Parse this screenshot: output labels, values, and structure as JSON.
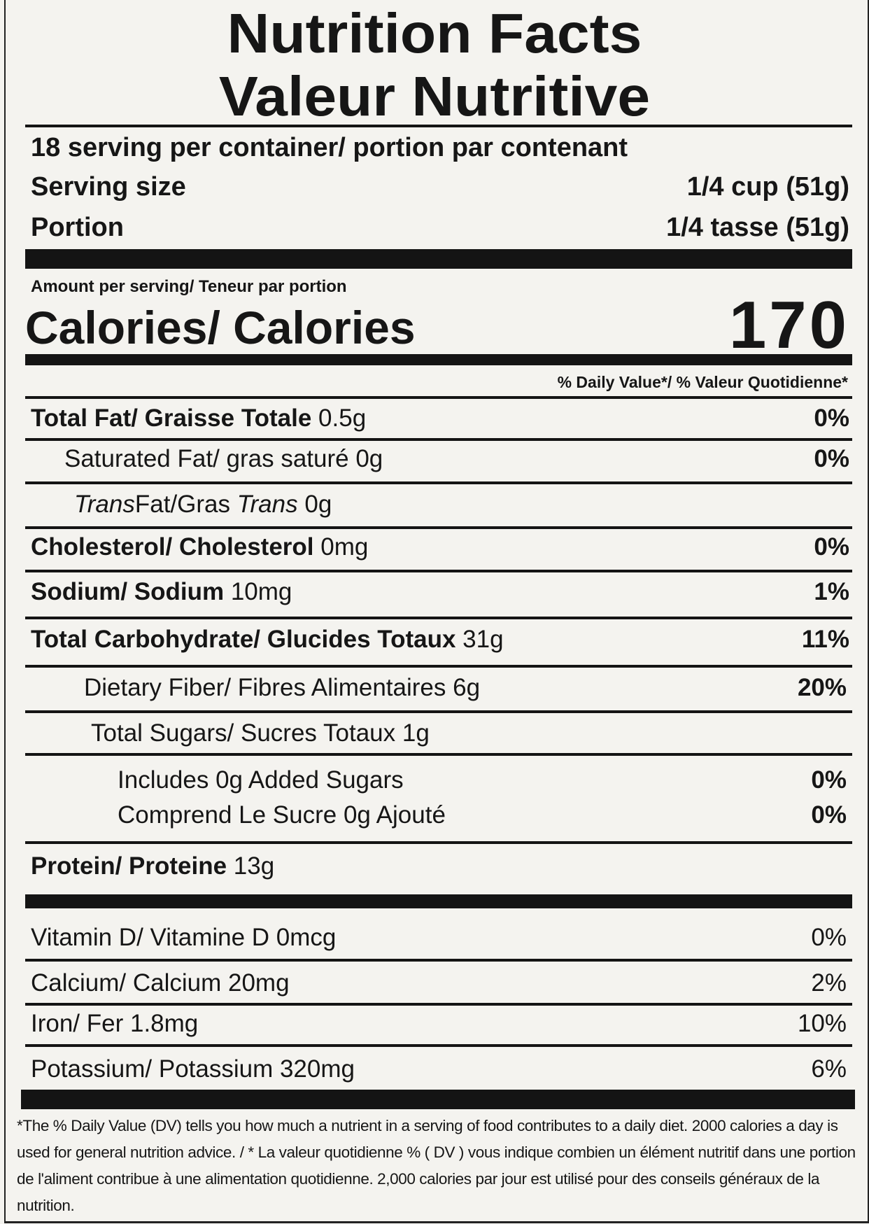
{
  "title_en": "Nutrition Facts",
  "title_fr": "Valeur Nutritive",
  "servings": "18 serving per container/ portion par contenant",
  "serving_size": {
    "label": "Serving size",
    "value": "1/4 cup (51g)"
  },
  "portion": {
    "label": "Portion",
    "value": "1/4 tasse (51g)"
  },
  "amount_per_serving": "Amount per serving/ Teneur par portion",
  "calories": {
    "label": "Calories/ Calories",
    "value": "170"
  },
  "dv_header": "% Daily Value*/ % Valeur Quotidienne*",
  "nutrients": [
    {
      "name": "Total Fat/ Graisse Totale",
      "amount": "0.5g",
      "dv": "0%"
    },
    {
      "name": "Saturated Fat/ gras saturé",
      "amount": "0g",
      "dv": "0%"
    },
    {
      "name_italic_1": "Trans",
      "name_mid": "Fat/Gras ",
      "name_italic_2": "Trans",
      "amount": "0g"
    },
    {
      "name": "Cholesterol/ Cholesterol",
      "amount": "0mg",
      "dv": "0%"
    },
    {
      "name": "Sodium/ Sodium",
      "amount": "10mg",
      "dv": "1%"
    },
    {
      "name": "Total Carbohydrate/ Glucides Totaux",
      "amount": "31g",
      "dv": "11%"
    },
    {
      "name": "Dietary Fiber/ Fibres Alimentaires 6g",
      "dv": "20%"
    },
    {
      "name": "Total Sugars/ Sucres Totaux 1g"
    },
    {
      "name": "Includes 0g Added Sugars",
      "dv": "0%"
    },
    {
      "name": "Comprend Le Sucre 0g Ajouté",
      "dv": "0%"
    },
    {
      "name": "Protein/ Proteine",
      "amount": "13g"
    }
  ],
  "vitamins": [
    {
      "name": "Vitamin D/ Vitamine D 0mcg",
      "dv": "0%"
    },
    {
      "name": "Calcium/ Calcium 20mg",
      "dv": "2%"
    },
    {
      "name": "Iron/ Fer 1.8mg",
      "dv": "10%"
    },
    {
      "name": "Potassium/ Potassium 320mg",
      "dv": "6%"
    }
  ],
  "footnote": "*The % Daily Value (DV) tells you how much a nutrient in a serving of food contributes to a daily diet. 2000 calories a day is used for general nutrition advice. / * La valeur quotidienne % ( DV ) vous indique combien un élément nutritif dans une portion de l'aliment contribue à une alimentation quotidienne. 2,000 calories par jour est utilisé pour des conseils généraux de la nutrition."
}
